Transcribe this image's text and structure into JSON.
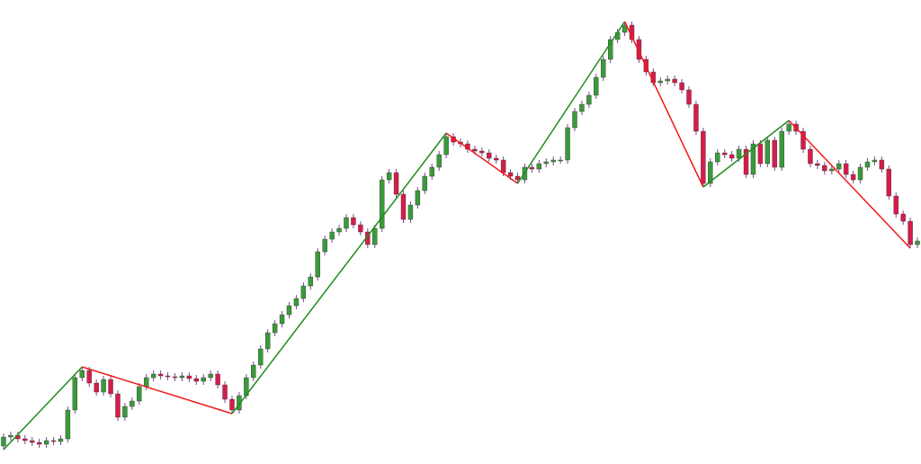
{
  "chart_data": {
    "type": "candlestick",
    "xlim": [
      -0.5,
      128.5
    ],
    "ylim": [
      0,
      516
    ],
    "up_color": "#3a9a3a",
    "down_color": "#d81b4a",
    "wick_color": "#7a4a8a",
    "open": [
      20,
      30,
      32,
      28,
      26,
      24,
      22,
      26,
      25,
      28,
      60,
      96,
      104,
      90,
      80,
      94,
      78,
      52,
      64,
      70,
      86,
      96,
      100,
      98,
      97,
      96,
      98,
      95,
      92,
      96,
      100,
      88,
      72,
      60,
      76,
      96,
      110,
      128,
      146,
      156,
      166,
      176,
      184,
      198,
      208,
      236,
      250,
      258,
      262,
      274,
      266,
      258,
      244,
      262,
      316,
      324,
      300,
      272,
      288,
      304,
      320,
      330,
      344,
      364,
      358,
      356,
      350,
      348,
      346,
      340,
      338,
      324,
      320,
      316,
      330,
      328,
      334,
      336,
      338,
      338,
      374,
      392,
      400,
      410,
      430,
      450,
      472,
      480,
      488,
      472,
      450,
      436,
      424,
      426,
      428,
      424,
      416,
      400,
      370,
      312,
      336,
      346,
      344,
      340,
      350,
      322,
      356,
      334,
      360,
      330,
      370,
      378,
      370,
      350,
      334,
      332,
      326,
      328,
      334,
      322,
      316,
      330,
      336,
      338,
      328,
      298,
      278,
      270,
      244
    ],
    "high": [
      34,
      36,
      36,
      32,
      30,
      28,
      30,
      30,
      32,
      64,
      100,
      108,
      108,
      94,
      98,
      98,
      82,
      68,
      74,
      90,
      100,
      104,
      104,
      102,
      101,
      102,
      102,
      99,
      100,
      104,
      104,
      92,
      76,
      80,
      100,
      114,
      132,
      150,
      160,
      170,
      180,
      188,
      202,
      212,
      240,
      254,
      262,
      266,
      278,
      278,
      270,
      262,
      266,
      320,
      328,
      328,
      304,
      292,
      308,
      324,
      334,
      348,
      368,
      368,
      362,
      360,
      354,
      352,
      350,
      344,
      342,
      328,
      324,
      334,
      334,
      338,
      340,
      342,
      342,
      378,
      396,
      404,
      414,
      434,
      454,
      476,
      484,
      492,
      492,
      476,
      454,
      440,
      430,
      432,
      432,
      428,
      420,
      404,
      374,
      340,
      350,
      350,
      348,
      354,
      354,
      360,
      360,
      364,
      364,
      374,
      382,
      382,
      374,
      354,
      338,
      336,
      332,
      338,
      338,
      326,
      334,
      340,
      342,
      342,
      332,
      302,
      282,
      274,
      252
    ],
    "low": [
      16,
      26,
      24,
      22,
      20,
      18,
      18,
      21,
      21,
      24,
      56,
      92,
      86,
      76,
      76,
      74,
      48,
      48,
      60,
      66,
      82,
      92,
      94,
      93,
      92,
      92,
      91,
      88,
      88,
      92,
      84,
      68,
      56,
      56,
      72,
      92,
      106,
      124,
      142,
      152,
      162,
      172,
      180,
      194,
      204,
      232,
      246,
      254,
      258,
      262,
      254,
      240,
      240,
      258,
      312,
      296,
      268,
      268,
      284,
      300,
      316,
      326,
      340,
      354,
      352,
      346,
      344,
      342,
      336,
      334,
      320,
      316,
      312,
      312,
      324,
      324,
      330,
      332,
      334,
      334,
      370,
      388,
      396,
      406,
      426,
      446,
      468,
      476,
      468,
      446,
      432,
      420,
      420,
      422,
      420,
      412,
      396,
      366,
      308,
      308,
      332,
      340,
      336,
      336,
      318,
      318,
      330,
      330,
      326,
      326,
      366,
      366,
      346,
      330,
      328,
      322,
      322,
      324,
      318,
      312,
      312,
      326,
      332,
      324,
      294,
      274,
      266,
      240,
      240
    ],
    "close": [
      30,
      32,
      28,
      26,
      24,
      22,
      26,
      25,
      28,
      60,
      96,
      104,
      90,
      80,
      94,
      78,
      52,
      64,
      70,
      86,
      96,
      100,
      98,
      97,
      96,
      98,
      95,
      92,
      96,
      100,
      88,
      72,
      60,
      76,
      96,
      110,
      128,
      146,
      156,
      166,
      176,
      184,
      198,
      208,
      236,
      250,
      258,
      262,
      274,
      266,
      258,
      244,
      262,
      316,
      324,
      300,
      272,
      288,
      304,
      320,
      330,
      344,
      364,
      358,
      356,
      350,
      348,
      346,
      340,
      338,
      324,
      320,
      316,
      330,
      328,
      334,
      336,
      338,
      338,
      374,
      392,
      400,
      410,
      430,
      450,
      472,
      480,
      488,
      472,
      450,
      436,
      424,
      426,
      428,
      424,
      416,
      400,
      370,
      312,
      336,
      346,
      344,
      340,
      350,
      322,
      356,
      334,
      360,
      330,
      370,
      378,
      370,
      350,
      334,
      332,
      326,
      328,
      334,
      322,
      316,
      330,
      336,
      338,
      328,
      298,
      278,
      270,
      244,
      248
    ],
    "zigzag": {
      "up_color": "#1e8c1e",
      "down_color": "#f01818",
      "x": [
        0,
        11,
        32,
        62,
        72,
        87,
        98,
        110,
        127
      ],
      "values": [
        16,
        108,
        56,
        368,
        312,
        492,
        308,
        382,
        240
      ]
    }
  }
}
